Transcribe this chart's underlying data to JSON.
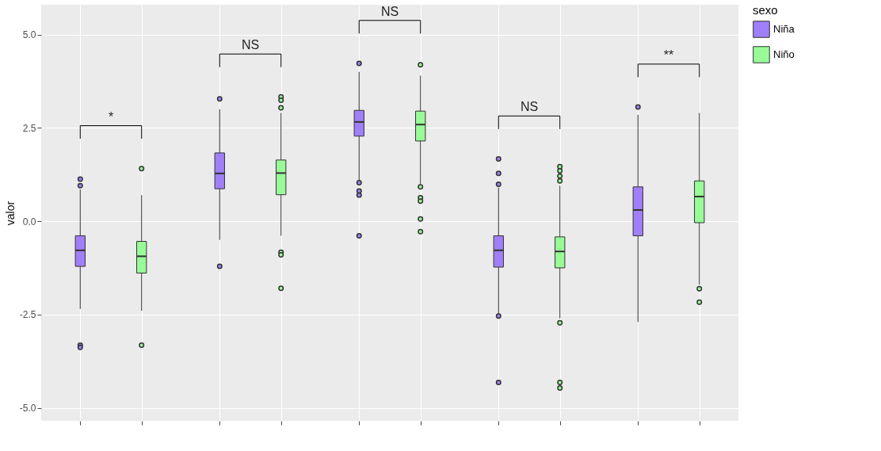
{
  "chart_data": {
    "type": "box",
    "categories": [
      null,
      null,
      null,
      null,
      null
    ],
    "ylabel": "valor",
    "ylim": [
      -5.35,
      5.8
    ],
    "yticks": [
      {
        "value": -5,
        "label": "-5.0"
      },
      {
        "value": -2.5,
        "label": "-2.5"
      },
      {
        "value": 0,
        "label": "0.0"
      },
      {
        "value": 2.5,
        "label": "2.5"
      },
      {
        "value": 5,
        "label": "5.0"
      }
    ],
    "grid": true,
    "legend": "right",
    "legend_title": "sexo",
    "annotations": [
      "*",
      "NS",
      "NS",
      "NS",
      "**"
    ],
    "series": [
      {
        "name": "Niña",
        "color": "#a07ff8",
        "boxes": [
          {
            "low": -2.35,
            "q1": -1.21,
            "median": -0.78,
            "q3": -0.39,
            "high": 0.85,
            "outliers": [
              1.13,
              0.95,
              -3.32,
              -3.38
            ]
          },
          {
            "low": -0.5,
            "q1": 0.87,
            "median": 1.28,
            "q3": 1.83,
            "high": 3.0,
            "outliers": [
              3.28,
              -1.21
            ]
          },
          {
            "low": 1.1,
            "q1": 2.28,
            "median": 2.66,
            "q3": 2.97,
            "high": 4.0,
            "outliers": [
              4.23,
              1.03,
              0.81,
              0.7,
              -0.39
            ]
          },
          {
            "low": -2.5,
            "q1": -1.23,
            "median": -0.78,
            "q3": -0.39,
            "high": 0.9,
            "outliers": [
              1.67,
              1.28,
              0.99,
              -2.54,
              -4.32
            ]
          },
          {
            "low": -2.7,
            "q1": -0.39,
            "median": 0.3,
            "q3": 0.92,
            "high": 2.85,
            "outliers": [
              3.06
            ]
          }
        ]
      },
      {
        "name": "Niño",
        "color": "#98fb98",
        "boxes": [
          {
            "low": -2.4,
            "q1": -1.39,
            "median": -0.94,
            "q3": -0.54,
            "high": 0.7,
            "outliers": [
              1.41,
              -3.32
            ]
          },
          {
            "low": -0.39,
            "q1": 0.71,
            "median": 1.29,
            "q3": 1.64,
            "high": 2.9,
            "outliers": [
              3.33,
              3.24,
              3.04,
              -0.83,
              -0.9,
              -1.8
            ]
          },
          {
            "low": 1.0,
            "q1": 2.15,
            "median": 2.59,
            "q3": 2.95,
            "high": 3.9,
            "outliers": [
              4.19,
              0.92,
              0.63,
              0.54,
              0.06,
              -0.28
            ]
          },
          {
            "low": -2.6,
            "q1": -1.25,
            "median": -0.81,
            "q3": -0.42,
            "high": 0.95,
            "outliers": [
              1.46,
              1.35,
              1.21,
              1.08,
              -2.72,
              -4.32,
              -4.47
            ]
          },
          {
            "low": -1.7,
            "q1": -0.04,
            "median": 0.66,
            "q3": 1.08,
            "high": 2.9,
            "outliers": [
              -1.81,
              -2.17
            ]
          }
        ]
      }
    ]
  }
}
